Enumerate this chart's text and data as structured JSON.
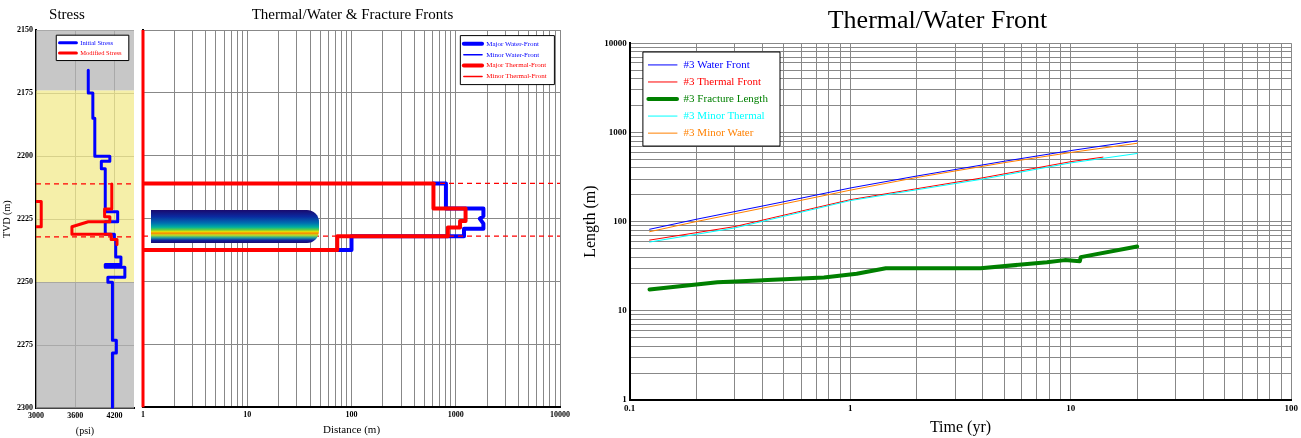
{
  "chart_data": [
    {
      "type": "line",
      "title": "Stress",
      "xlabel": "(psi)",
      "ylabel": "TVD (m)",
      "xlim": [
        3000,
        4500
      ],
      "xticks": [
        3000,
        3600,
        4200
      ],
      "ylim": [
        2300,
        2150
      ],
      "yticks": [
        2150,
        2175,
        2200,
        2225,
        2250,
        2275,
        2300
      ],
      "grid": true,
      "legend": "top right",
      "bands": [
        {
          "axis": "y",
          "from": 2150,
          "to": 2174,
          "color": "#b4b4b4"
        },
        {
          "axis": "y",
          "from": 2174,
          "to": 2250,
          "color": "#f2ea8c"
        },
        {
          "axis": "y",
          "from": 2250,
          "to": 2300,
          "color": "#b4b4b4"
        }
      ],
      "ref_lines": [
        {
          "axis": "y",
          "value": 2211,
          "color": "#ff0000",
          "line_style": "dashed"
        },
        {
          "axis": "y",
          "value": 2232,
          "color": "#ff0000",
          "line_style": "dashed"
        }
      ],
      "series": [
        {
          "name": "Initial Stress",
          "color": "#0000ff",
          "x": [
            3800,
            3800,
            3870,
            3870,
            3900,
            3900,
            4130,
            4130,
            4000,
            4000,
            4060,
            4060,
            4250,
            4250,
            4060,
            4060,
            4200,
            4200,
            4220,
            4220,
            4300,
            4300,
            4060,
            4060,
            4360,
            4360,
            4100,
            4100,
            4170,
            4170,
            4230,
            4230,
            4170,
            4170
          ],
          "values": [
            2166,
            2175,
            2175,
            2185,
            2185,
            2200,
            2200,
            2202,
            2202,
            2205,
            2205,
            2222,
            2222,
            2226,
            2226,
            2231,
            2231,
            2233,
            2233,
            2240,
            2240,
            2243,
            2243,
            2244,
            2244,
            2248,
            2248,
            2250,
            2250,
            2273,
            2273,
            2278,
            2278,
            2300
          ]
        },
        {
          "name": "Modified Stress",
          "color": "#ff0000",
          "x": [
            4160,
            4160,
            4050,
            4050,
            4130,
            4130,
            3800,
            3550,
            3550,
            4150,
            4150,
            4240,
            4240
          ],
          "values": [
            2211,
            2221,
            2221,
            2224,
            2224,
            2226,
            2226,
            2228,
            2231,
            2231,
            2233,
            2233,
            2235
          ]
        },
        {
          "color": "#ff0000",
          "x": [
            3000,
            3080,
            3080,
            3000
          ],
          "values": [
            2218,
            2218,
            2228,
            2228
          ]
        }
      ]
    },
    {
      "type": "line",
      "title": "Thermal/Water & Fracture Fronts",
      "xlabel": "Distance (m)",
      "log": "x",
      "xlim": [
        1,
        10000
      ],
      "xticks": [
        1,
        {
          "value": 2,
          "label": null
        },
        {
          "value": 3,
          "label": null
        },
        {
          "value": 4,
          "label": null
        },
        {
          "value": 5,
          "label": null
        },
        {
          "value": 6,
          "label": null
        },
        {
          "value": 7,
          "label": null
        },
        {
          "value": 8,
          "label": null
        },
        {
          "value": 9,
          "label": null
        },
        10,
        {
          "value": 20,
          "label": null
        },
        {
          "value": 30,
          "label": null
        },
        {
          "value": 40,
          "label": null
        },
        {
          "value": 50,
          "label": null
        },
        {
          "value": 60,
          "label": null
        },
        {
          "value": 70,
          "label": null
        },
        {
          "value": 80,
          "label": null
        },
        {
          "value": 90,
          "label": null
        },
        100,
        {
          "value": 200,
          "label": null
        },
        {
          "value": 300,
          "label": null
        },
        {
          "value": 400,
          "label": null
        },
        {
          "value": 500,
          "label": null
        },
        {
          "value": 600,
          "label": null
        },
        {
          "value": 700,
          "label": null
        },
        {
          "value": 800,
          "label": null
        },
        {
          "value": 900,
          "label": null
        },
        1000,
        {
          "value": 2000,
          "label": null
        },
        {
          "value": 3000,
          "label": null
        },
        {
          "value": 4000,
          "label": null
        },
        {
          "value": 5000,
          "label": null
        },
        {
          "value": 6000,
          "label": null
        },
        {
          "value": 7000,
          "label": null
        },
        {
          "value": 8000,
          "label": null
        },
        {
          "value": 9000,
          "label": null
        },
        10000
      ],
      "ylim": [
        2300,
        2150
      ],
      "yticks": [
        2150,
        2175,
        2200,
        2225,
        2250,
        2275,
        2300
      ],
      "tick_labels": "x",
      "grid": true,
      "legend": "top right",
      "ref_lines": [
        {
          "axis": "x",
          "value": 1,
          "color": "#ff0000",
          "line_style": "solid"
        },
        {
          "axis": "y",
          "value": 2211,
          "color": "#ff0000",
          "line_style": "dashed"
        },
        {
          "axis": "y",
          "value": 2232,
          "color": "#ff0000",
          "line_style": "dashed"
        }
      ],
      "series": [
        {
          "name": "Major Water-Front",
          "color": "#0000ff",
          "x": [
            611,
            805,
            805,
            1842,
            1842,
            1700,
            1842,
            1842,
            1200,
            1200,
            100,
            100,
            73
          ],
          "values": [
            2211,
            2211,
            2221,
            2221,
            2224,
            2225,
            2227,
            2229,
            2229,
            2232,
            2232,
            2237.5,
            2237.5
          ]
        },
        {
          "name": "Minor Water-Front",
          "color": "#0000ff"
        },
        {
          "name": "Major Thermal-Front",
          "color": "#ff0000",
          "x": [
            1,
            611,
            611,
            1242,
            1242,
            1100,
            1100,
            840,
            840,
            73,
            73,
            1
          ],
          "values": [
            2211,
            2211,
            2221,
            2221,
            2226,
            2226,
            2228.5,
            2228.5,
            2232,
            2232,
            2237.5,
            2237.5
          ]
        },
        {
          "name": "Minor Thermal-Front",
          "color": "#ff0000"
        }
      ]
    },
    {
      "type": "line",
      "title": "Thermal/Water Front",
      "xlabel": "Time (yr)",
      "ylabel": "Length (m)",
      "log": "xy",
      "xlim": [
        0.1,
        100
      ],
      "xticks": [
        0.1,
        {
          "value": 0.2,
          "label": null
        },
        {
          "value": 0.3,
          "label": null
        },
        {
          "value": 0.4,
          "label": null
        },
        {
          "value": 0.5,
          "label": null
        },
        {
          "value": 0.6,
          "label": null
        },
        {
          "value": 0.7,
          "label": null
        },
        {
          "value": 0.8,
          "label": null
        },
        {
          "value": 0.9,
          "label": null
        },
        1,
        {
          "value": 2,
          "label": null
        },
        {
          "value": 3,
          "label": null
        },
        {
          "value": 4,
          "label": null
        },
        {
          "value": 5,
          "label": null
        },
        {
          "value": 6,
          "label": null
        },
        {
          "value": 7,
          "label": null
        },
        {
          "value": 8,
          "label": null
        },
        {
          "value": 9,
          "label": null
        },
        10,
        {
          "value": 20,
          "label": null
        },
        {
          "value": 30,
          "label": null
        },
        {
          "value": 40,
          "label": null
        },
        {
          "value": 50,
          "label": null
        },
        {
          "value": 60,
          "label": null
        },
        {
          "value": 70,
          "label": null
        },
        {
          "value": 80,
          "label": null
        },
        {
          "value": 90,
          "label": null
        },
        100
      ],
      "ylim": [
        1,
        10000
      ],
      "yticks": [
        1,
        {
          "value": 2,
          "label": null
        },
        {
          "value": 3,
          "label": null
        },
        {
          "value": 4,
          "label": null
        },
        {
          "value": 5,
          "label": null
        },
        {
          "value": 6,
          "label": null
        },
        {
          "value": 7,
          "label": null
        },
        {
          "value": 8,
          "label": null
        },
        {
          "value": 9,
          "label": null
        },
        10,
        {
          "value": 20,
          "label": null
        },
        {
          "value": 30,
          "label": null
        },
        {
          "value": 40,
          "label": null
        },
        {
          "value": 50,
          "label": null
        },
        {
          "value": 60,
          "label": null
        },
        {
          "value": 70,
          "label": null
        },
        {
          "value": 80,
          "label": null
        },
        {
          "value": 90,
          "label": null
        },
        100,
        {
          "value": 200,
          "label": null
        },
        {
          "value": 300,
          "label": null
        },
        {
          "value": 400,
          "label": null
        },
        {
          "value": 500,
          "label": null
        },
        {
          "value": 600,
          "label": null
        },
        {
          "value": 700,
          "label": null
        },
        {
          "value": 800,
          "label": null
        },
        {
          "value": 900,
          "label": null
        },
        1000,
        {
          "value": 2000,
          "label": null
        },
        {
          "value": 3000,
          "label": null
        },
        {
          "value": 4000,
          "label": null
        },
        {
          "value": 5000,
          "label": null
        },
        {
          "value": 6000,
          "label": null
        },
        {
          "value": 7000,
          "label": null
        },
        {
          "value": 8000,
          "label": null
        },
        {
          "value": 9000,
          "label": null
        },
        10000
      ],
      "grid": true,
      "legend": "top left",
      "series": [
        {
          "name": "#3 Water Front",
          "color": "#0000ff",
          "x": [
            0.123,
            0.2,
            0.5,
            1,
            2,
            5,
            10,
            20
          ],
          "values": [
            82,
            106,
            167,
            238,
            324,
            475,
            625,
            805
          ]
        },
        {
          "name": "#3 Thermal Front",
          "color": "#ff0000",
          "x": [
            0.123,
            0.3,
            1,
            4,
            10,
            14
          ],
          "values": [
            62,
            88,
            176,
            310,
            470,
            528
          ]
        },
        {
          "name": "#3 Fracture Length",
          "color": "#008000",
          "x": [
            0.123,
            0.25,
            0.76,
            1.07,
            1.45,
            3.9,
            7.8,
            9.4,
            11,
            11.1,
            20
          ],
          "values": [
            17.3,
            20.9,
            23.6,
            26,
            30,
            30,
            35,
            37,
            36,
            40,
            52.6
          ]
        },
        {
          "name": "#3 Minor Thermal",
          "color": "#00ffff",
          "x": [
            0.123,
            0.3,
            1,
            4,
            10,
            20
          ],
          "values": [
            59,
            85,
            172,
            300,
            455,
            580
          ]
        },
        {
          "name": "#3 Minor Water",
          "color": "#ff8000",
          "x": [
            0.123,
            0.2,
            0.5,
            1,
            2,
            5,
            10,
            20
          ],
          "values": [
            77,
            100,
            158,
            225,
            312,
            458,
            595,
            755
          ]
        }
      ]
    }
  ]
}
